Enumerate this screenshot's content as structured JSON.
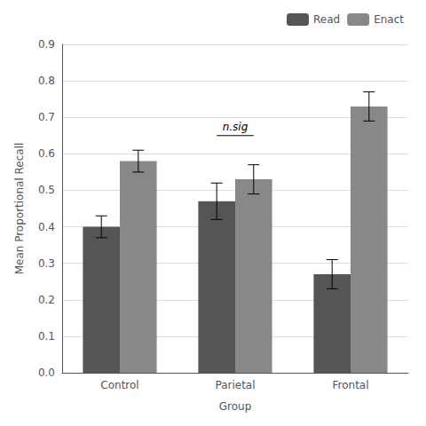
{
  "chart_data": {
    "type": "bar",
    "categories": [
      "Control",
      "Parietal",
      "Frontal"
    ],
    "series": [
      {
        "name": "Read",
        "color": "#555555",
        "values": [
          0.4,
          0.47,
          0.27
        ],
        "errors": [
          0.03,
          0.05,
          0.04
        ]
      },
      {
        "name": "Enact",
        "color": "#888888",
        "values": [
          0.58,
          0.53,
          0.73
        ],
        "errors": [
          0.03,
          0.04,
          0.04
        ]
      }
    ],
    "xlabel": "Group",
    "ylabel": "Mean Proportional Recall",
    "ylim": [
      0,
      0.9
    ],
    "yticks": [
      {
        "value": 0.0,
        "label": "0.0"
      },
      0.1,
      0.2,
      0.3,
      0.4,
      0.5,
      0.6,
      0.7,
      0.8,
      0.9
    ],
    "legend": "upper right",
    "annotations": [
      {
        "text": "n.sig",
        "category": "Parietal",
        "y": 0.65
      }
    ]
  }
}
